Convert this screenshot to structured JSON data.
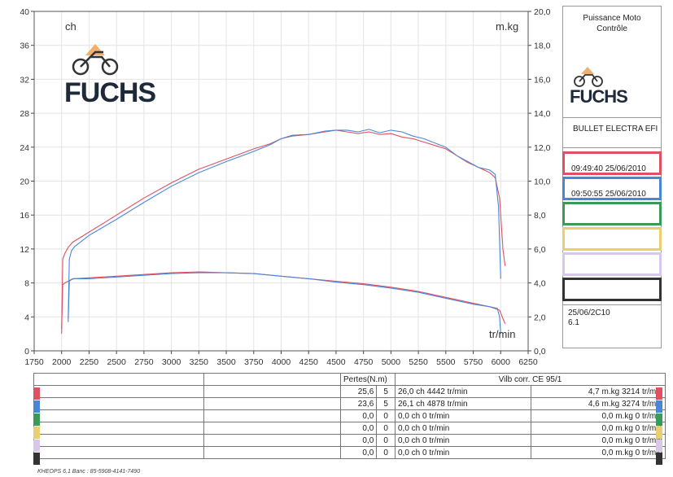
{
  "chart_data": {
    "type": "line",
    "xlabel": "tr/min",
    "ylabel_left": "ch",
    "ylabel_right": "m.kg",
    "xlim": [
      1750,
      6250
    ],
    "ylim_left": [
      0,
      40
    ],
    "ylim_right": [
      0,
      20
    ],
    "x_ticks": [
      1750,
      2000,
      2250,
      2500,
      2750,
      3000,
      3250,
      3500,
      3750,
      4000,
      4250,
      4500,
      4750,
      5000,
      5250,
      5500,
      5750,
      6000,
      6250
    ],
    "y_ticks_left": [
      0,
      4,
      8,
      12,
      16,
      20,
      24,
      28,
      32,
      36,
      40
    ],
    "y_ticks_right": [
      "0,0",
      "2,0",
      "4,0",
      "6,0",
      "8,0",
      "10,0",
      "12,0",
      "14,0",
      "16,0",
      "18,0",
      "20,0"
    ],
    "grid": true,
    "series": [
      {
        "color": "#e05060",
        "power": {
          "x": [
            2000,
            2010,
            2030,
            2060,
            2100,
            2250,
            2500,
            2750,
            3000,
            3250,
            3500,
            3750,
            3900,
            4000,
            4100,
            4250,
            4400,
            4500,
            4600,
            4700,
            4800,
            4900,
            5000,
            5100,
            5200,
            5300,
            5400,
            5500,
            5600,
            5700,
            5800,
            5900,
            5950,
            5990,
            6020,
            6040
          ],
          "y": [
            2.0,
            10.8,
            11.5,
            12.2,
            12.8,
            14.0,
            16.0,
            18.0,
            19.8,
            21.4,
            22.6,
            23.8,
            24.4,
            25.0,
            25.3,
            25.5,
            25.8,
            26.0,
            25.8,
            25.6,
            25.8,
            25.5,
            25.6,
            25.2,
            25.0,
            24.6,
            24.2,
            23.8,
            23.0,
            22.2,
            21.6,
            21.0,
            20.4,
            18.0,
            12.0,
            10.0
          ]
        },
        "torque": {
          "x": [
            2000,
            2010,
            2030,
            2060,
            2100,
            2250,
            2500,
            2750,
            3000,
            3250,
            3500,
            3750,
            4000,
            4250,
            4500,
            4750,
            5000,
            5250,
            5500,
            5750,
            5900,
            5990,
            6020,
            6040
          ],
          "y": [
            1.3,
            3.9,
            4.0,
            4.1,
            4.25,
            4.3,
            4.4,
            4.5,
            4.6,
            4.65,
            4.6,
            4.55,
            4.4,
            4.25,
            4.1,
            3.95,
            3.75,
            3.5,
            3.15,
            2.8,
            2.6,
            2.4,
            1.9,
            1.6
          ]
        }
      },
      {
        "color": "#4a86d8",
        "power": {
          "x": [
            2060,
            2070,
            2090,
            2120,
            2250,
            2500,
            2750,
            3000,
            3250,
            3500,
            3750,
            3900,
            4000,
            4100,
            4250,
            4400,
            4500,
            4600,
            4700,
            4800,
            4900,
            5000,
            5100,
            5200,
            5300,
            5400,
            5500,
            5600,
            5700,
            5800,
            5900,
            5950,
            5980,
            6000
          ],
          "y": [
            3.8,
            10.8,
            11.8,
            12.3,
            13.6,
            15.5,
            17.5,
            19.4,
            21.0,
            22.3,
            23.5,
            24.3,
            25.0,
            25.4,
            25.5,
            25.9,
            26.0,
            26.0,
            25.8,
            26.1,
            25.7,
            26.0,
            25.8,
            25.3,
            25.0,
            24.5,
            24.0,
            23.0,
            22.3,
            21.6,
            21.3,
            20.8,
            17.0,
            8.5
          ]
        },
        "torque": {
          "x": [
            2060,
            2070,
            2090,
            2120,
            2250,
            2500,
            2750,
            3000,
            3250,
            3500,
            3750,
            4000,
            4250,
            4500,
            4750,
            5000,
            5250,
            5500,
            5750,
            5900,
            5970,
            5990,
            6000
          ],
          "y": [
            1.7,
            4.1,
            4.2,
            4.25,
            4.25,
            4.35,
            4.45,
            4.55,
            4.6,
            4.6,
            4.55,
            4.4,
            4.25,
            4.05,
            3.9,
            3.7,
            3.45,
            3.1,
            2.75,
            2.6,
            2.5,
            2.0,
            1.0
          ]
        }
      }
    ]
  },
  "header": {
    "logo_text": "FUCHS",
    "company": "Puissance Moto Contrôle",
    "vehicle": "BULLET ELECTRA EFI"
  },
  "runs": [
    {
      "color": "#e05060",
      "label": "09:49:40  25/06/2010"
    },
    {
      "color": "#4a86d8",
      "label": "09:50:55  25/06/2010"
    },
    {
      "color": "#3a9a5a",
      "label": ""
    },
    {
      "color": "#e8d070",
      "label": ""
    },
    {
      "color": "#d8c8e8",
      "label": ""
    },
    {
      "color": "#333333",
      "label": ""
    }
  ],
  "info": {
    "date": "25/06/2C10",
    "version": "6.1"
  },
  "table": {
    "header_pertes": "Pertes(N.m)",
    "header_norm": "Vilb corr. CE 95/1",
    "rows": [
      {
        "color": "#e05060",
        "loss": "25,6",
        "gear": "5",
        "power": "26,0 ch 4442 tr/min",
        "torque": "4,7 m.kg 3214 tr/min"
      },
      {
        "color": "#4a86d8",
        "loss": "23,6",
        "gear": "5",
        "power": "26,1 ch 4878 tr/min",
        "torque": "4,6 m.kg 3274 tr/min"
      },
      {
        "color": "#3a9a5a",
        "loss": "0,0",
        "gear": "0",
        "power": "0,0 ch 0 tr/min",
        "torque": "0,0 m.kg 0 tr/min"
      },
      {
        "color": "#e8d070",
        "loss": "0,0",
        "gear": "0",
        "power": "0,0 ch 0 tr/min",
        "torque": "0,0 m.kg 0 tr/min"
      },
      {
        "color": "#d8c8e8",
        "loss": "0,0",
        "gear": "0",
        "power": "0,0 ch 0 tr/min",
        "torque": "0,0 m.kg 0 tr/min"
      },
      {
        "color": "#333333",
        "loss": "0,0",
        "gear": "0",
        "power": "0,0 ch 0 tr/min",
        "torque": "0,0 m.kg 0 tr/min"
      }
    ]
  },
  "footer": "KHEOPS 6.1  Banc : 85-5908-4141-7490"
}
